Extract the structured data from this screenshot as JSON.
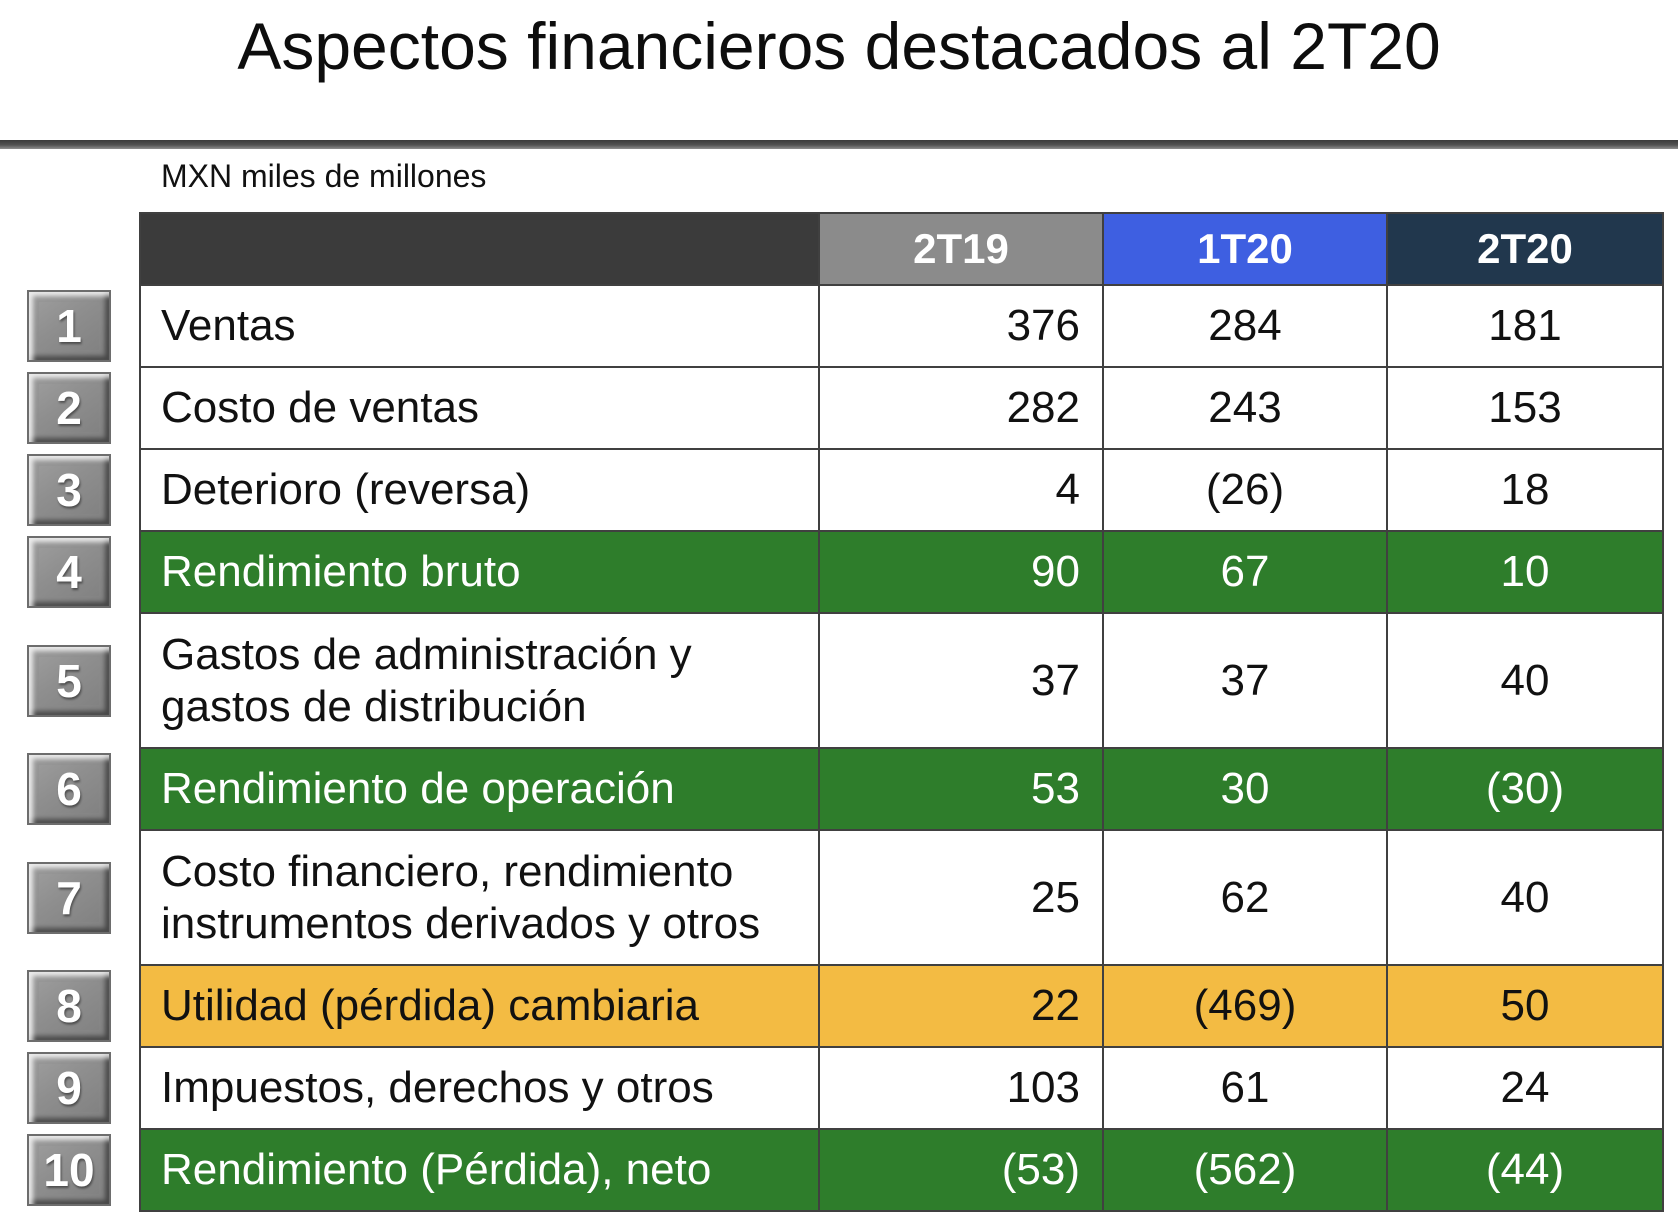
{
  "title": "Aspectos financieros destacados al 2T20",
  "units_label": "MXN miles de millones",
  "table": {
    "corner_label": "",
    "columns": [
      {
        "id": "2T19",
        "label": "2T19",
        "bg": "#8b8b8b"
      },
      {
        "id": "1T20",
        "label": "1T20",
        "bg": "#3e5fe1"
      },
      {
        "id": "2T20",
        "label": "2T20",
        "bg": "#21374d"
      }
    ],
    "rows": [
      {
        "num": "1",
        "label": "Ventas",
        "values": [
          "376",
          "284",
          "181"
        ],
        "highlight": "none",
        "tall": false
      },
      {
        "num": "2",
        "label": "Costo de ventas",
        "values": [
          "282",
          "243",
          "153"
        ],
        "highlight": "none",
        "tall": false
      },
      {
        "num": "3",
        "label": "Deterioro (reversa)",
        "values": [
          "4",
          "(26)",
          "18"
        ],
        "highlight": "none",
        "tall": false
      },
      {
        "num": "4",
        "label": "Rendimiento bruto",
        "values": [
          "90",
          "67",
          "10"
        ],
        "highlight": "green",
        "tall": false
      },
      {
        "num": "5",
        "label": "Gastos de administración y gastos de distribución",
        "values": [
          "37",
          "37",
          "40"
        ],
        "highlight": "none",
        "tall": true
      },
      {
        "num": "6",
        "label": "Rendimiento de operación",
        "values": [
          "53",
          "30",
          "(30)"
        ],
        "highlight": "green",
        "tall": false
      },
      {
        "num": "7",
        "label": "Costo financiero, rendimiento instrumentos derivados y otros",
        "values": [
          "25",
          "62",
          "40"
        ],
        "highlight": "none",
        "tall": true
      },
      {
        "num": "8",
        "label": "Utilidad (pérdida) cambiaria",
        "values": [
          "22",
          "(469)",
          "50"
        ],
        "highlight": "yellow",
        "tall": false
      },
      {
        "num": "9",
        "label": "Impuestos, derechos y otros",
        "values": [
          "103",
          "61",
          "24"
        ],
        "highlight": "none",
        "tall": false
      },
      {
        "num": "10",
        "label": "Rendimiento (Pérdida), neto",
        "values": [
          "(53)",
          "(562)",
          "(44)"
        ],
        "highlight": "green",
        "tall": false
      }
    ]
  },
  "colors": {
    "row_green": "#2e7d2b",
    "row_yellow": "#f3bb43",
    "header_dark": "#3b3b3b",
    "grid_line": "#404040",
    "badge_gray": "#8e8e8e"
  }
}
